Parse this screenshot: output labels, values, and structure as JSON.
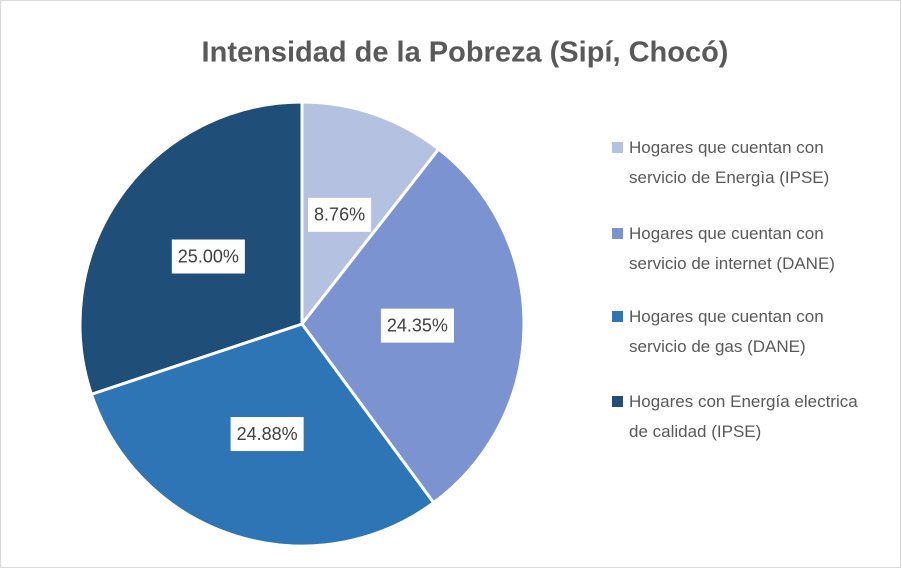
{
  "chart_data": {
    "type": "pie",
    "title": "Intensidad de la Pobreza (Sipí, Chocó)",
    "categories": [
      "Hogares que cuentan con servicio de Energìa (IPSE)",
      "Hogares que cuentan con servicio de internet (DANE)",
      "Hogares que cuentan con servicio de gas (DANE)",
      "Hogares con Energía electrica de calidad (IPSE)"
    ],
    "values": [
      8.76,
      24.35,
      24.88,
      25.0
    ],
    "value_labels": [
      "8.76%",
      "24.35%",
      "24.88%",
      "25.00%"
    ],
    "colors": [
      "#b4c1e1",
      "#7b93d1",
      "#2e75b6",
      "#1f4e79"
    ],
    "legend": "right"
  }
}
